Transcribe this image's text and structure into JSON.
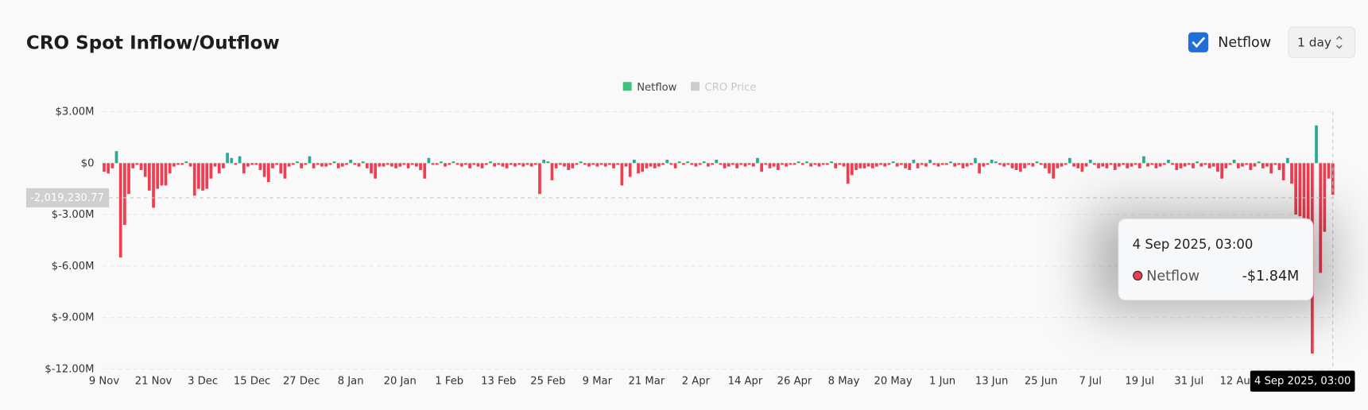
{
  "chart_data": {
    "type": "bar",
    "title": "CRO Spot Inflow/Outflow",
    "controls": {
      "checkbox_label": "Netflow",
      "interval": "1 day"
    },
    "legend": [
      {
        "name": "Netflow",
        "color": "#3cc47c"
      },
      {
        "name": "CRO Price",
        "color": "#cccccc"
      }
    ],
    "categories": [
      "9 Nov",
      null,
      null,
      null,
      null,
      null,
      null,
      null,
      null,
      null,
      null,
      null,
      "21 Nov",
      null,
      null,
      null,
      null,
      null,
      null,
      null,
      null,
      null,
      null,
      null,
      "3 Dec",
      null,
      null,
      null,
      null,
      null,
      null,
      null,
      null,
      null,
      null,
      null,
      "15 Dec",
      null,
      null,
      null,
      null,
      null,
      null,
      null,
      null,
      null,
      null,
      null,
      "27 Dec",
      null,
      null,
      null,
      null,
      null,
      null,
      null,
      null,
      null,
      null,
      null,
      "8 Jan",
      null,
      null,
      null,
      null,
      null,
      null,
      null,
      null,
      null,
      null,
      null,
      "20 Jan",
      null,
      null,
      null,
      null,
      null,
      null,
      null,
      null,
      null,
      null,
      null,
      "1 Feb",
      null,
      null,
      null,
      null,
      null,
      null,
      null,
      null,
      null,
      null,
      null,
      "13 Feb",
      null,
      null,
      null,
      null,
      null,
      null,
      null,
      null,
      null,
      null,
      null,
      "25 Feb",
      null,
      null,
      null,
      null,
      null,
      null,
      null,
      null,
      null,
      null,
      null,
      "9 Mar",
      null,
      null,
      null,
      null,
      null,
      null,
      null,
      null,
      null,
      null,
      null,
      "21 Mar",
      null,
      null,
      null,
      null,
      null,
      null,
      null,
      null,
      null,
      null,
      null,
      "2 Apr",
      null,
      null,
      null,
      null,
      null,
      null,
      null,
      null,
      null,
      null,
      null,
      "14 Apr",
      null,
      null,
      null,
      null,
      null,
      null,
      null,
      null,
      null,
      null,
      null,
      "26 Apr",
      null,
      null,
      null,
      null,
      null,
      null,
      null,
      null,
      null,
      null,
      null,
      "8 May",
      null,
      null,
      null,
      null,
      null,
      null,
      null,
      null,
      null,
      null,
      null,
      "20 May",
      null,
      null,
      null,
      null,
      null,
      null,
      null,
      null,
      null,
      null,
      null,
      "1 Jun",
      null,
      null,
      null,
      null,
      null,
      null,
      null,
      null,
      null,
      null,
      null,
      "13 Jun",
      null,
      null,
      null,
      null,
      null,
      null,
      null,
      null,
      null,
      null,
      null,
      "25 Jun",
      null,
      null,
      null,
      null,
      null,
      null,
      null,
      null,
      null,
      null,
      null,
      "7 Jul",
      null,
      null,
      null,
      null,
      null,
      null,
      null,
      null,
      null,
      null,
      null,
      "19 Jul",
      null,
      null,
      null,
      null,
      null,
      null,
      null,
      null,
      null,
      null,
      null,
      "31 Jul",
      null,
      null,
      null,
      null,
      null,
      null,
      null,
      null,
      null,
      null,
      null,
      "12 Aug",
      null,
      null,
      null,
      null,
      null,
      null,
      null,
      null,
      null,
      null,
      null,
      null,
      null,
      null,
      null,
      null,
      null,
      null,
      null,
      null,
      null,
      null,
      null
    ],
    "series": [
      {
        "name": "Netflow",
        "color": "#3cc47c",
        "positive_color": "#2aab8e",
        "negative_color": "#f23c4f",
        "values": [
          -0.5,
          -0.6,
          -0.3,
          0.7,
          -5.5,
          -3.6,
          -1.8,
          -0.3,
          -0.1,
          -0.4,
          -0.8,
          -1.6,
          -2.6,
          -1.5,
          -1.3,
          -1.3,
          -0.6,
          -0.2,
          -0.1,
          -0.1,
          0.1,
          -0.2,
          -1.9,
          -1.5,
          -1.6,
          -1.5,
          -0.9,
          -0.2,
          -0.6,
          -0.3,
          0.6,
          0.3,
          -0.1,
          0.4,
          -0.6,
          -0.2,
          -0.1,
          -0.1,
          -0.4,
          -0.8,
          -1.1,
          -0.3,
          -0.1,
          -0.6,
          -0.9,
          -0.2,
          -0.1,
          0.1,
          -0.3,
          -0.1,
          0.4,
          -0.3,
          -0.1,
          -0.2,
          -0.2,
          -0.1,
          0.1,
          -0.3,
          -0.2,
          -0.1,
          0.2,
          -0.1,
          -0.2,
          0.1,
          -0.3,
          -0.6,
          -0.9,
          -0.2,
          -0.2,
          -0.1,
          -0.2,
          -0.3,
          -0.2,
          -0.1,
          -0.3,
          -0.1,
          -0.2,
          -0.4,
          -0.9,
          0.3,
          -0.1,
          -0.1,
          0.1,
          -0.2,
          -0.1,
          0.1,
          -0.1,
          -0.2,
          -0.1,
          -0.3,
          -0.1,
          -0.2,
          -0.3,
          -0.1,
          0.1,
          -0.2,
          -0.1,
          -0.2,
          -0.3,
          -0.1,
          -0.2,
          -0.1,
          -0.2,
          -0.1,
          -0.2,
          -0.1,
          -1.8,
          0.2,
          0.1,
          -1.0,
          -0.3,
          -0.1,
          -0.2,
          -0.4,
          -0.3,
          -0.1,
          0.1,
          -0.1,
          -0.2,
          -0.1,
          -0.2,
          -0.1,
          -0.2,
          -0.1,
          -0.3,
          -0.1,
          -1.3,
          -0.2,
          -0.8,
          0.2,
          -0.6,
          -0.5,
          -0.3,
          -0.2,
          -0.3,
          -0.2,
          -0.1,
          0.2,
          -0.1,
          -0.3,
          0.1,
          -0.1,
          0.1,
          -0.1,
          -0.2,
          -0.1,
          0.1,
          -0.2,
          -0.1,
          0.2,
          -0.1,
          -0.3,
          -0.2,
          -0.1,
          -0.3,
          -0.1,
          -0.2,
          -0.1,
          -0.2,
          0.3,
          -0.5,
          -0.1,
          -0.3,
          -0.2,
          -0.4,
          -0.1,
          -0.2,
          -0.1,
          -0.1,
          0.1,
          -0.1,
          0.1,
          -0.2,
          -0.1,
          -0.2,
          -0.1,
          -0.1,
          0.1,
          -0.3,
          -0.1,
          -0.2,
          -1.2,
          -0.7,
          -0.4,
          -0.3,
          -0.3,
          -0.2,
          -0.3,
          -0.2,
          -0.1,
          -0.2,
          -0.1,
          0.1,
          -0.2,
          -0.1,
          -0.3,
          -0.4,
          0.2,
          -0.3,
          -0.1,
          -0.2,
          0.2,
          -0.1,
          -0.2,
          -0.1,
          -0.1,
          0.1,
          -0.2,
          -0.1,
          -0.3,
          -0.2,
          -0.1,
          0.3,
          -0.6,
          -0.2,
          -0.1,
          0.2,
          0.1,
          -0.1,
          -0.2,
          -0.1,
          -0.3,
          -0.4,
          -0.5,
          -0.3,
          -0.1,
          -0.2,
          0.1,
          -0.1,
          -0.3,
          -0.6,
          -0.9,
          -0.3,
          -0.2,
          -0.1,
          0.3,
          -0.2,
          -0.3,
          -0.5,
          -0.2,
          0.2,
          -0.1,
          -0.3,
          -0.2,
          -0.3,
          -0.1,
          -0.4,
          -0.2,
          -0.1,
          -0.3,
          -0.2,
          -0.1,
          -0.3,
          0.4,
          -0.2,
          -0.1,
          -0.3,
          -0.2,
          -0.1,
          0.2,
          -0.1,
          -0.4,
          -0.3,
          -0.2,
          -0.1,
          -0.3,
          0.1,
          -0.2,
          -0.1,
          -0.3,
          -0.2,
          -0.5,
          -0.9,
          -0.3,
          -0.1,
          0.2,
          -0.3,
          -0.2,
          -0.1,
          -0.4,
          -0.2,
          0.1,
          -0.3,
          -0.2,
          -0.6,
          -0.1,
          -0.4,
          -1.0,
          0.3,
          -1.2,
          -3.0,
          -3.1,
          -3.2,
          -3.4,
          -11.1,
          2.2,
          -6.4,
          -4.0,
          -0.9,
          -1.84
        ]
      }
    ],
    "ylim": [
      -12,
      3
    ],
    "yticks": [
      {
        "value": 3,
        "label": "$3.00M"
      },
      {
        "value": 0,
        "label": "$0"
      },
      {
        "value": -3,
        "label": "$-3.00M"
      },
      {
        "value": -6,
        "label": "$-6.00M"
      },
      {
        "value": -9,
        "label": "$-9.00M"
      },
      {
        "value": -12,
        "label": "$-12.00M"
      }
    ],
    "grid": true,
    "crosshair": {
      "x_label": "4 Sep 2025, 03:00",
      "y": {
        "value": -2.01923077,
        "label": "-2,019,230.77"
      }
    },
    "tooltip": {
      "title": "4 Sep 2025, 03:00",
      "series": "Netflow",
      "value": -1.84,
      "value_label": "-$1.84M"
    }
  }
}
